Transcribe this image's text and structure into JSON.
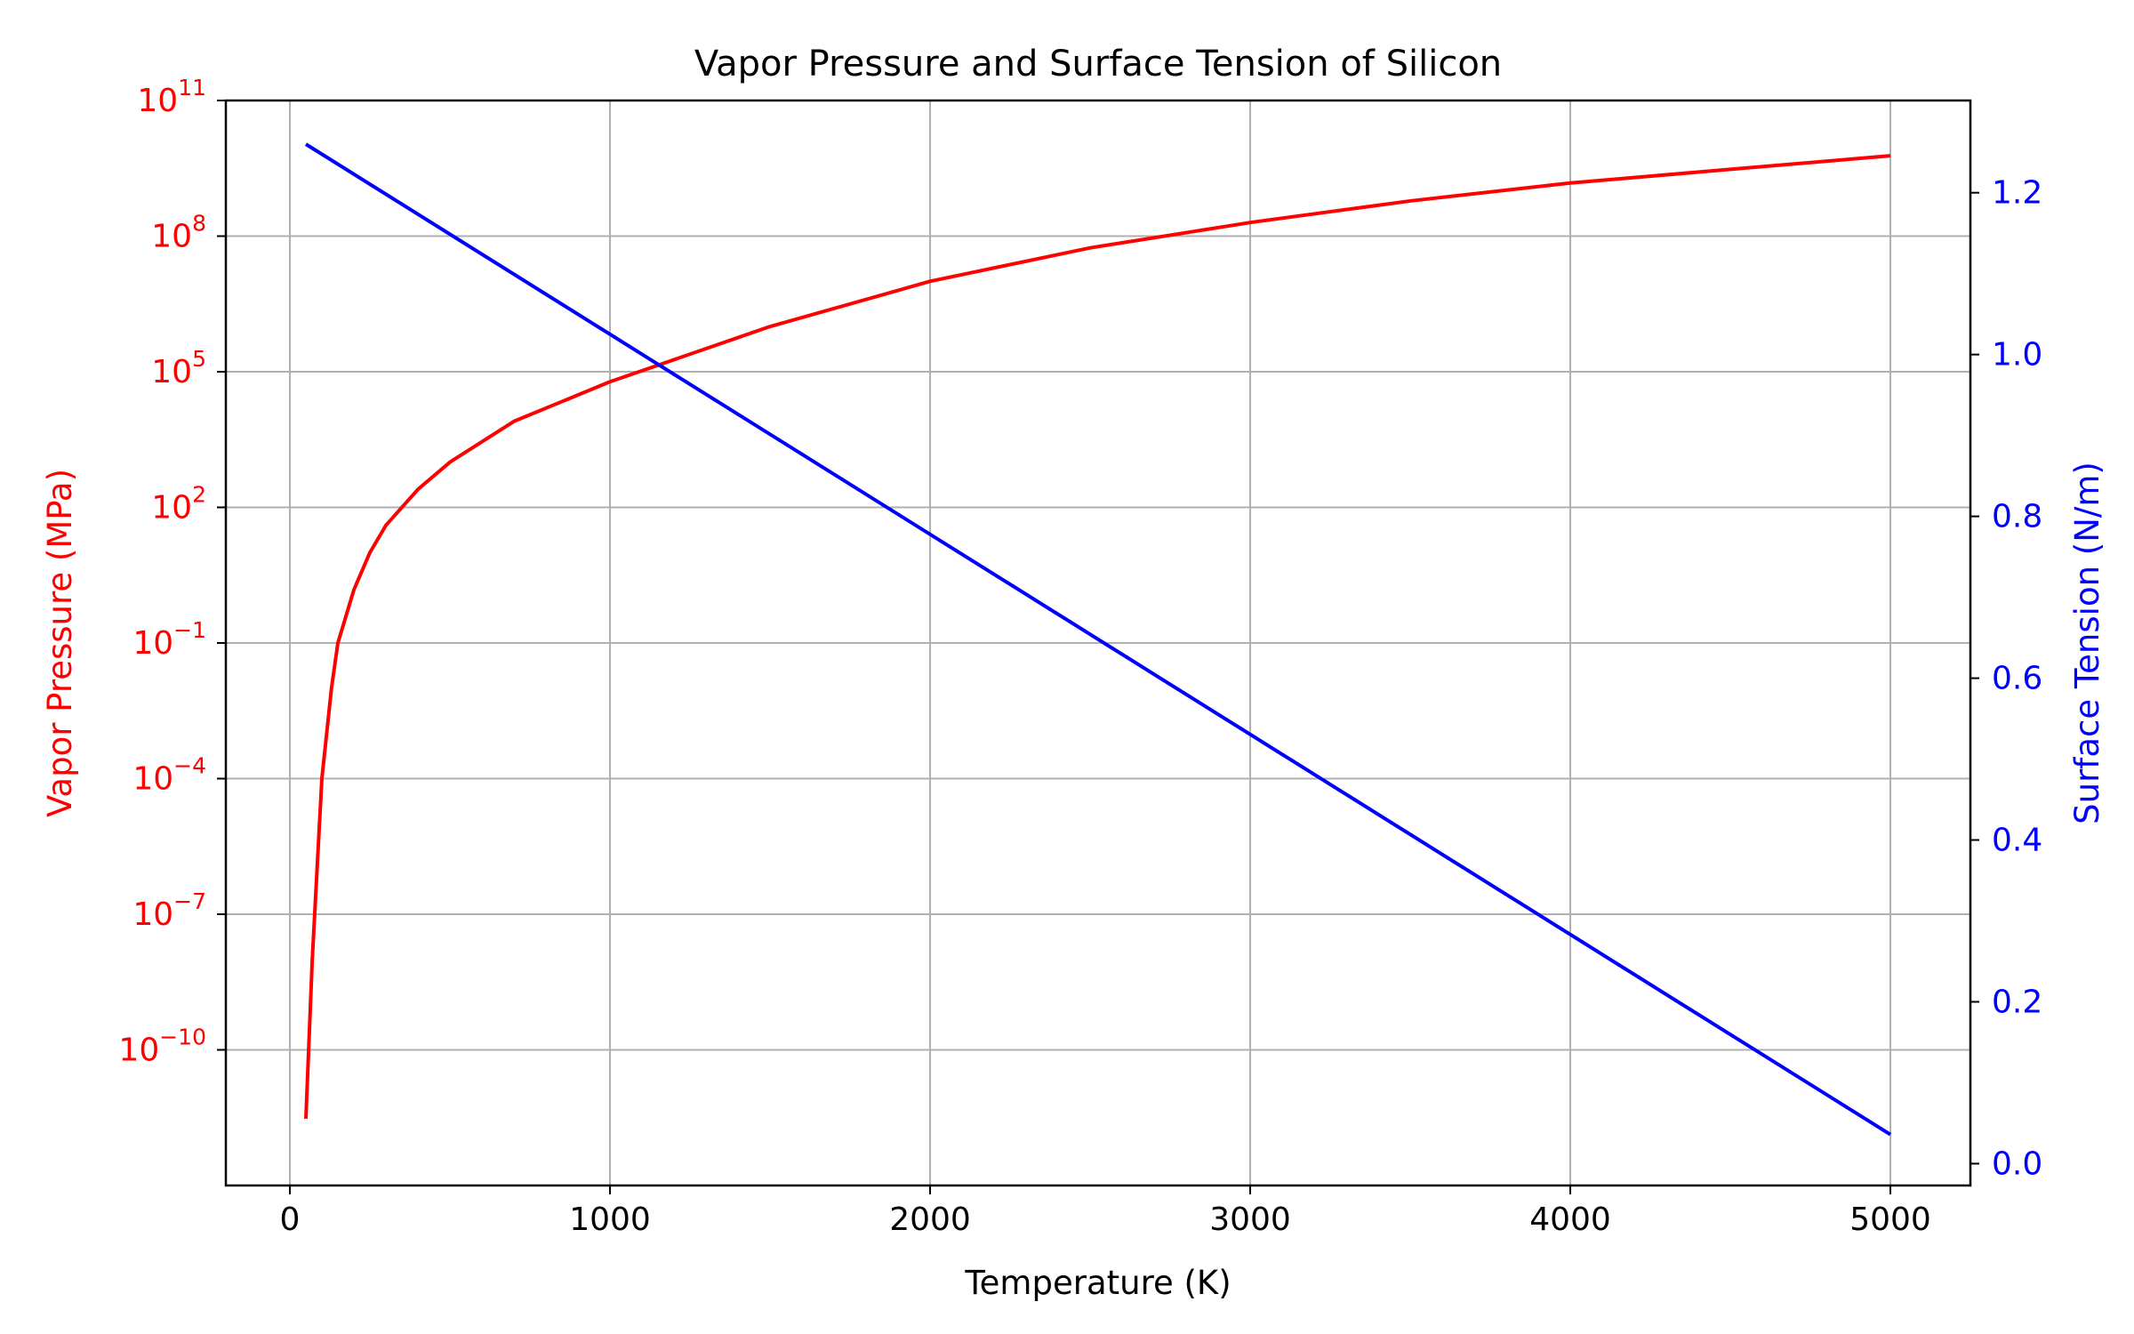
{
  "chart_data": {
    "type": "line",
    "title": "Vapor Pressure and Surface Tension of Silicon",
    "xlabel": "Temperature (K)",
    "xlim": [
      -200,
      5250
    ],
    "xticks": [
      0,
      1000,
      2000,
      3000,
      4000,
      5000
    ],
    "xtick_labels": [
      "0",
      "1000",
      "2000",
      "3000",
      "4000",
      "5000"
    ],
    "grid": true,
    "y_left": {
      "label": "Vapor Pressure (MPa)",
      "scale": "log",
      "color": "#ff0000",
      "lim_exp": [
        -13,
        11
      ],
      "tick_exponents": [
        -10,
        -7,
        -4,
        -1,
        2,
        5,
        8,
        11
      ],
      "tick_labels": [
        {
          "base": "10",
          "exp": "−10"
        },
        {
          "base": "10",
          "exp": "−7"
        },
        {
          "base": "10",
          "exp": "−4"
        },
        {
          "base": "10",
          "exp": "−1"
        },
        {
          "base": "10",
          "exp": "2"
        },
        {
          "base": "10",
          "exp": "5"
        },
        {
          "base": "10",
          "exp": "8"
        },
        {
          "base": "10",
          "exp": "11"
        }
      ]
    },
    "y_right": {
      "label": "Surface Tension (N/m)",
      "scale": "linear",
      "color": "#0000ff",
      "lim": [
        -0.027,
        1.314
      ],
      "ticks": [
        0.0,
        0.2,
        0.4,
        0.6,
        0.8,
        1.0,
        1.2
      ],
      "tick_labels": [
        "0.0",
        "0.2",
        "0.4",
        "0.6",
        "0.8",
        "1.0",
        "1.2"
      ]
    },
    "series": [
      {
        "axis": "left",
        "color": "#ff0000",
        "x": [
          50,
          70,
          100,
          130,
          150,
          200,
          250,
          300,
          400,
          500,
          700,
          1000,
          1500,
          2000,
          2500,
          3000,
          3500,
          4000,
          4500,
          5000
        ],
        "y": [
          3e-12,
          1e-08,
          0.0001,
          0.01,
          0.1,
          1.5,
          10,
          40,
          250,
          1000,
          8000,
          60000,
          1000000,
          10000000,
          55000000,
          200000000,
          600000000,
          1500000000,
          3000000000,
          6000000000
        ]
      },
      {
        "axis": "right",
        "color": "#0000ff",
        "x": [
          50,
          5000
        ],
        "y": [
          1.26,
          0.036
        ]
      }
    ]
  }
}
